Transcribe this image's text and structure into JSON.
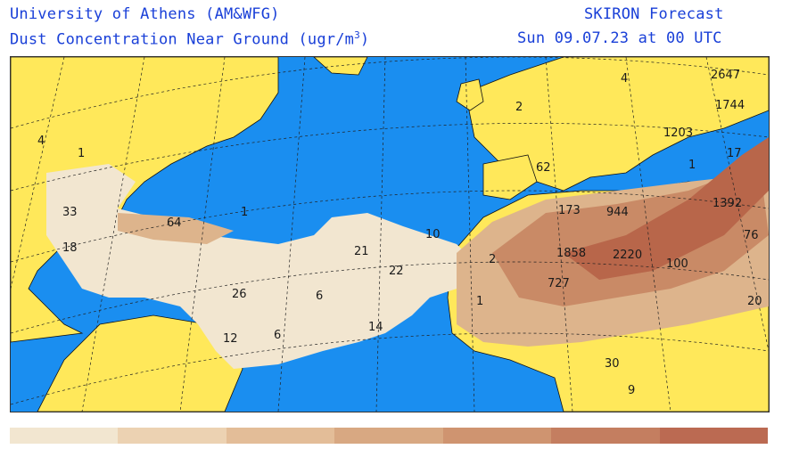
{
  "header": {
    "org": "University of Athens (AM&WFG)",
    "product": "SKIRON Forecast",
    "variable_prefix": "Dust Concentration Near Ground (ugr/m",
    "variable_exp": "3",
    "variable_suffix": ")",
    "valid_time": "Sun 09.07.23 at 00 UTC"
  },
  "colors": {
    "ocean": "#1a8ef0",
    "land": "#ffe85a",
    "dust_low": "#f2e6d0",
    "dust_mid": "#ddb48c",
    "dust_high": "#c98a66",
    "dust_peak": "#b8664a"
  },
  "map_labels": [
    "4",
    "1",
    "33",
    "18",
    "64",
    "1",
    "26",
    "12",
    "6",
    "6",
    "21",
    "22",
    "10",
    "14",
    "2",
    "1",
    "173",
    "944",
    "1858",
    "2220",
    "727",
    "100",
    "30",
    "9",
    "62",
    "2",
    "4",
    "2647",
    "1744",
    "1203",
    "17",
    "1",
    "1392",
    "76",
    "20"
  ],
  "legend": [
    {
      "color": "#f2e6d0"
    },
    {
      "color": "#ecd2b2"
    },
    {
      "color": "#e3bd98"
    },
    {
      "color": "#d8a882"
    },
    {
      "color": "#cf9470"
    },
    {
      "color": "#c47e60"
    },
    {
      "color": "#bb6a52"
    }
  ]
}
